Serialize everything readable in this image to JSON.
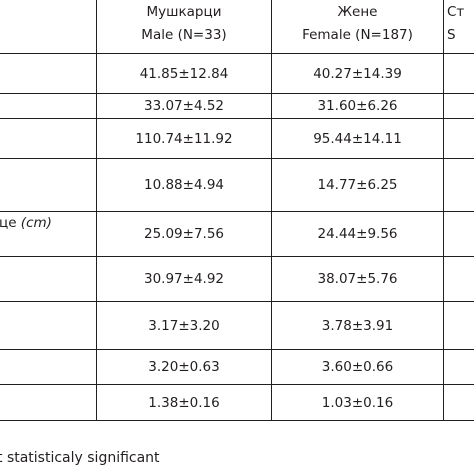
{
  "table": {
    "header": {
      "col1": {
        "line1": "Мушкарци",
        "line2": "Male (N=33)"
      },
      "col2": {
        "line1": "Жене",
        "line2": "Female (N=187)"
      },
      "col3": {
        "line1": "Ст",
        "line2": "S"
      }
    },
    "rows": [
      {
        "label": "",
        "male": "41.85±12.84",
        "female": "40.27±14.39"
      },
      {
        "label": "",
        "male": "33.07±4.52",
        "female": "31.60±6.26"
      },
      {
        "label": "",
        "male": "110.74±11.92",
        "female": "95.44±14.11"
      },
      {
        "label": "",
        "male": "10.88±4.94",
        "female": "14.77±6.25"
      },
      {
        "label": "це",
        "label_unit": "(cm)",
        "male": "25.09±7.56",
        "female": "24.44±9.56"
      },
      {
        "label": "",
        "male": "30.97±4.92",
        "female": "38.07±5.76"
      },
      {
        "label": "",
        "male": "3.17±3.20",
        "female": "3.78±3.91"
      },
      {
        "label": "",
        "male": "3.20±0.63",
        "female": "3.60±0.66"
      },
      {
        "label": "",
        "male": "1.38±0.16",
        "female": "1.03±0.16"
      }
    ]
  },
  "footnote": "t statisticaly significant"
}
